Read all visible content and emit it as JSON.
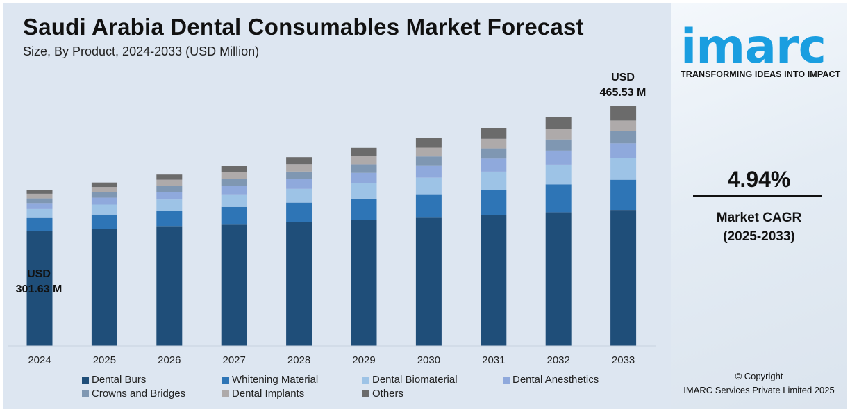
{
  "title": "Saudi Arabia Dental Consumables Market Forecast",
  "subtitle": "Size, By Product, 2024-2033 (USD Million)",
  "annotations": {
    "first": {
      "line1": "USD",
      "line2": "301.63 M"
    },
    "last": {
      "line1": "USD",
      "line2": "465.53 M"
    }
  },
  "brand": {
    "logo_text": "imarc",
    "tagline": "TRANSFORMING IDEAS INTO IMPACT",
    "accent_color": "#1a9ee0"
  },
  "cagr": {
    "value": "4.94%",
    "label_line1": "Market CAGR",
    "label_line2": "(2025-2033)"
  },
  "copyright": {
    "line1": "© Copyright",
    "line2": "IMARC Services Private Limited 2025"
  },
  "chart_data": {
    "type": "bar",
    "stacked": true,
    "categories": [
      "2024",
      "2025",
      "2026",
      "2027",
      "2028",
      "2029",
      "2030",
      "2031",
      "2032",
      "2033"
    ],
    "totals": [
      301.63,
      316.5,
      332.1,
      348.5,
      365.7,
      383.7,
      402.6,
      422.5,
      443.4,
      465.53
    ],
    "ylim": [
      0,
      500
    ],
    "grid": false,
    "legend_position": "bottom",
    "series": [
      {
        "name": "Dental Burs",
        "color": "#1f4e79",
        "values": [
          223.0,
          226.8,
          230.9,
          235.0,
          239.8,
          244.0,
          248.5,
          253.2,
          259.0,
          263.6
        ]
      },
      {
        "name": "Whitening Material",
        "color": "#2e75b6",
        "values": [
          25.0,
          27.8,
          31.0,
          34.3,
          37.8,
          41.3,
          45.3,
          49.5,
          54.0,
          58.3
        ]
      },
      {
        "name": "Dental Biomaterial",
        "color": "#9dc3e6",
        "values": [
          17.2,
          19.2,
          21.7,
          24.4,
          26.7,
          29.5,
          32.2,
          35.1,
          38.2,
          41.3
        ]
      },
      {
        "name": "Dental Anesthetics",
        "color": "#8fa9dc",
        "values": [
          11.6,
          13.3,
          15.0,
          16.7,
          18.7,
          20.6,
          22.8,
          25.0,
          27.2,
          29.2
        ]
      },
      {
        "name": "Crowns and Bridges",
        "color": "#7f97b2",
        "values": [
          9.0,
          10.5,
          12.0,
          13.5,
          15.0,
          16.6,
          18.2,
          19.8,
          21.6,
          23.3
        ]
      },
      {
        "name": "Dental Implants",
        "color": "#aeaaaa",
        "values": [
          9.0,
          10.3,
          11.5,
          13.1,
          14.2,
          15.7,
          17.1,
          18.6,
          20.0,
          21.0
        ]
      },
      {
        "name": "Others",
        "color": "#6b6b6b",
        "values": [
          6.83,
          8.6,
          10.0,
          11.5,
          13.5,
          16.0,
          18.5,
          21.3,
          23.4,
          28.83
        ]
      }
    ]
  }
}
